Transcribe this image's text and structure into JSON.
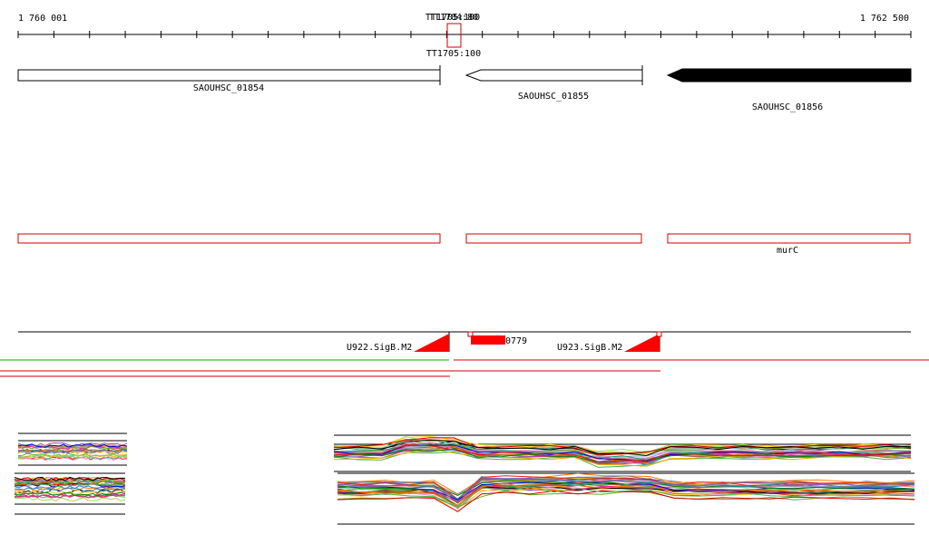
{
  "ruler": {
    "start_label": "1 760 001",
    "end_label": "1 762 500",
    "start_bp": 1760001,
    "end_bp": 1762500,
    "terminator_labels": [
      "TT1704:80",
      "TT1705:100"
    ]
  },
  "genes": [
    {
      "name": "SAOUHSC_01854",
      "strand": "-",
      "start_bp": 1760001,
      "end_bp": 1761185,
      "filled": false
    },
    {
      "name": "SAOUHSC_01855",
      "strand": "-",
      "start_bp": 1761260,
      "end_bp": 1761750,
      "filled": false
    },
    {
      "name": "SAOUHSC_01856",
      "strand": "-",
      "start_bp": 1761820,
      "end_bp": 1762500,
      "filled": true
    }
  ],
  "operon_track": {
    "boxes": [
      {
        "start_bp": 1760001,
        "end_bp": 1761185,
        "label": ""
      },
      {
        "start_bp": 1761260,
        "end_bp": 1761750,
        "label": ""
      },
      {
        "start_bp": 1761820,
        "end_bp": 1762500,
        "label": "murC"
      }
    ]
  },
  "promoter_track": {
    "promoters": [
      {
        "label": "U922.SigB.M2",
        "position_bp": 1761210
      },
      {
        "label": "U923.SigB.M2",
        "position_bp": 1761800
      }
    ],
    "features": [
      {
        "label": "0779",
        "start_bp": 1761255,
        "end_bp": 1761355
      }
    ]
  },
  "colors": {
    "gene_outline": "#000000",
    "gene_filled": "#000000",
    "operon_box": "#cc0000",
    "promoter": "#ff0000",
    "terminator_box": "#cc0000",
    "transcript_green": "#00aa00",
    "transcript_red": "#cc0000"
  },
  "expression": {
    "line_colors": [
      "#000000",
      "#e41a1c",
      "#377eb8",
      "#4daf4a",
      "#984ea3",
      "#ff7f00",
      "#a65628",
      "#f781bf",
      "#999999",
      "#66c2a5",
      "#fc8d62",
      "#8da0cb",
      "#e78ac3",
      "#a6d854",
      "#ffd92f",
      "#1b9e77",
      "#d95f02",
      "#7570b3",
      "#e7298a",
      "#66a61e",
      "#e6ab02",
      "#0000cc",
      "#cc0000",
      "#008800"
    ]
  }
}
